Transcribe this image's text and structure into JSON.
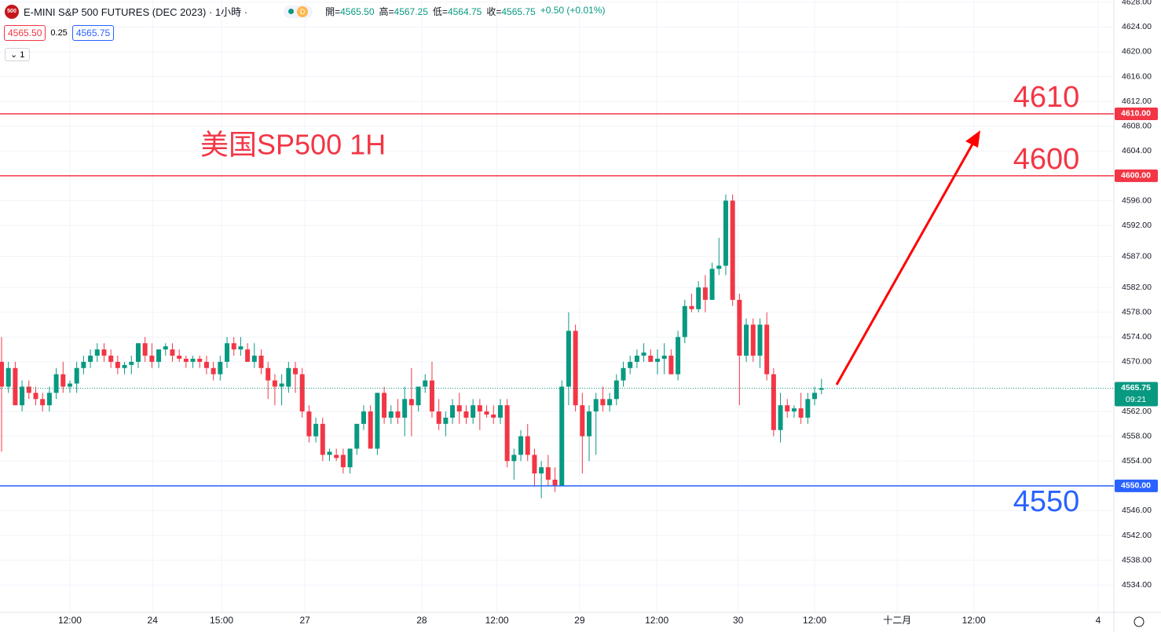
{
  "header": {
    "icon": "500",
    "symbol": "E-MINI S&P 500 FUTURES (DEC 2023) · 1小時 ·",
    "mode": "D",
    "ohlc": [
      {
        "label": "開=",
        "value": "4565.50"
      },
      {
        "label": "高=",
        "value": "4567.25"
      },
      {
        "label": "低=",
        "value": "4564.75"
      },
      {
        "label": "收=",
        "value": "4565.75"
      }
    ],
    "change": "+0.50 (+0.01%)",
    "bid": "4565.50",
    "spread": "0.25",
    "ask": "4565.75",
    "quantity": "1"
  },
  "chart_data": {
    "type": "candlestick",
    "annotation": "美国SP500 1H",
    "up_color": "#089981",
    "down_color": "#f23645",
    "grid": true,
    "ohlc": [
      [
        4570,
        4574,
        4555.5,
        4566
      ],
      [
        4566,
        4570,
        4565,
        4569
      ],
      [
        4569,
        4570,
        4563,
        4563
      ],
      [
        4563,
        4567,
        4562,
        4566
      ],
      [
        4566,
        4567,
        4564,
        4565
      ],
      [
        4565,
        4566,
        4563,
        4564
      ],
      [
        4564,
        4565,
        4562,
        4563
      ],
      [
        4563,
        4566,
        4562,
        4565
      ],
      [
        4565,
        4569,
        4564,
        4568
      ],
      [
        4568,
        4570,
        4565,
        4566
      ],
      [
        4566,
        4567,
        4565,
        4566.5
      ],
      [
        4566.5,
        4570,
        4565,
        4569
      ],
      [
        4569,
        4571,
        4568,
        4570
      ],
      [
        4570,
        4572,
        4569,
        4571
      ],
      [
        4571,
        4573,
        4570,
        4572
      ],
      [
        4572,
        4573,
        4570,
        4571
      ],
      [
        4571,
        4572,
        4569,
        4570
      ],
      [
        4570,
        4571,
        4568,
        4569
      ],
      [
        4569,
        4570,
        4568,
        4569.5
      ],
      [
        4569.5,
        4571,
        4568,
        4570
      ],
      [
        4570,
        4573,
        4569,
        4573
      ],
      [
        4573,
        4574,
        4570,
        4571
      ],
      [
        4571,
        4573,
        4569,
        4570
      ],
      [
        4570,
        4572,
        4569,
        4572
      ],
      [
        4572,
        4573,
        4571,
        4572.5
      ],
      [
        4572,
        4573,
        4570,
        4571
      ],
      [
        4571,
        4572,
        4570,
        4570.5
      ],
      [
        4570.5,
        4571,
        4569,
        4570
      ],
      [
        4570,
        4571,
        4569,
        4570.5
      ],
      [
        4570.5,
        4571,
        4569,
        4570
      ],
      [
        4570,
        4571,
        4568,
        4569
      ],
      [
        4569,
        4570,
        4567,
        4568
      ],
      [
        4568,
        4571,
        4567,
        4570
      ],
      [
        4570,
        4574,
        4569,
        4573
      ],
      [
        4573,
        4574,
        4571,
        4572
      ],
      [
        4572,
        4574,
        4571,
        4572.5
      ],
      [
        4572,
        4573,
        4570,
        4570
      ],
      [
        4570,
        4573,
        4569,
        4571
      ],
      [
        4571,
        4572,
        4568,
        4569
      ],
      [
        4569,
        4570,
        4564,
        4567
      ],
      [
        4567,
        4568,
        4563,
        4566
      ],
      [
        4566,
        4568,
        4563,
        4566.5
      ],
      [
        4566,
        4570,
        4565,
        4569
      ],
      [
        4569,
        4570,
        4565,
        4568
      ],
      [
        4568,
        4569,
        4561,
        4562
      ],
      [
        4562,
        4563,
        4557,
        4558
      ],
      [
        4558,
        4561,
        4557,
        4560
      ],
      [
        4560,
        4561,
        4554,
        4555
      ],
      [
        4555,
        4556,
        4554,
        4555.5
      ],
      [
        4555,
        4556,
        4554,
        4554.5
      ],
      [
        4555,
        4556,
        4552,
        4553
      ],
      [
        4553,
        4556,
        4552,
        4556
      ],
      [
        4556,
        4560,
        4555,
        4560
      ],
      [
        4560,
        4563,
        4559,
        4562
      ],
      [
        4562,
        4563,
        4556,
        4556
      ],
      [
        4556,
        4565,
        4555,
        4565
      ],
      [
        4565,
        4566,
        4560,
        4561
      ],
      [
        4561,
        4563,
        4560,
        4562
      ],
      [
        4562,
        4564,
        4560,
        4561
      ],
      [
        4561,
        4566,
        4558,
        4564
      ],
      [
        4564,
        4569,
        4558,
        4563
      ],
      [
        4563,
        4566,
        4562,
        4566
      ],
      [
        4566,
        4568,
        4565,
        4567
      ],
      [
        4567,
        4570,
        4561,
        4562
      ],
      [
        4562,
        4564,
        4559,
        4560
      ],
      [
        4560,
        4562,
        4558,
        4561
      ],
      [
        4561,
        4564,
        4560,
        4563
      ],
      [
        4563,
        4565,
        4560,
        4562
      ],
      [
        4562,
        4563,
        4560,
        4561
      ],
      [
        4561,
        4564,
        4560,
        4563
      ],
      [
        4563,
        4564,
        4559,
        4562
      ],
      [
        4562,
        4563,
        4561,
        4561.5
      ],
      [
        4561.5,
        4563,
        4560,
        4561
      ],
      [
        4561,
        4564,
        4560,
        4563
      ],
      [
        4563,
        4564,
        4553,
        4554
      ],
      [
        4554,
        4556,
        4551,
        4555
      ],
      [
        4555,
        4559,
        4554,
        4558
      ],
      [
        4558,
        4560,
        4554,
        4555
      ],
      [
        4555,
        4556,
        4550,
        4552
      ],
      [
        4552,
        4554,
        4548,
        4553
      ],
      [
        4553,
        4555,
        4550,
        4551
      ],
      [
        4551,
        4553,
        4549,
        4550
      ],
      [
        4550,
        4567,
        4550,
        4566
      ],
      [
        4566,
        4578,
        4563,
        4575
      ],
      [
        4575,
        4576,
        4562,
        4563
      ],
      [
        4563,
        4565,
        4552,
        4558
      ],
      [
        4558,
        4563,
        4554,
        4562
      ],
      [
        4562,
        4565,
        4555,
        4564
      ],
      [
        4564,
        4566,
        4562,
        4563
      ],
      [
        4563,
        4565,
        4562,
        4564
      ],
      [
        4564,
        4568,
        4563,
        4567
      ],
      [
        4567,
        4570,
        4566,
        4569
      ],
      [
        4569,
        4571,
        4568,
        4570
      ],
      [
        4570,
        4572,
        4569,
        4571
      ],
      [
        4571,
        4573,
        4570,
        4571.5
      ],
      [
        4571,
        4572,
        4570,
        4570
      ],
      [
        4570,
        4572,
        4568,
        4570.5
      ],
      [
        4570.5,
        4573,
        4568,
        4571
      ],
      [
        4571,
        4572,
        4568,
        4568
      ],
      [
        4568,
        4575,
        4567,
        4574
      ],
      [
        4574,
        4580,
        4573,
        4579
      ],
      [
        4579,
        4581,
        4578,
        4578.5
      ],
      [
        4578.5,
        4583,
        4578,
        4582
      ],
      [
        4582,
        4584,
        4578,
        4580
      ],
      [
        4580,
        4586,
        4580,
        4585
      ],
      [
        4585,
        4590,
        4584,
        4585.5
      ],
      [
        4585.5,
        4597,
        4584,
        4596
      ],
      [
        4596,
        4597,
        4579,
        4580
      ],
      [
        4580,
        4581,
        4563,
        4571
      ],
      [
        4571,
        4577,
        4570,
        4576
      ],
      [
        4576,
        4577,
        4570,
        4571
      ],
      [
        4571,
        4577,
        4569,
        4576
      ],
      [
        4576,
        4578,
        4567,
        4568
      ],
      [
        4568,
        4569,
        4558,
        4559
      ],
      [
        4559,
        4565,
        4557,
        4563
      ],
      [
        4563,
        4564,
        4561,
        4562
      ],
      [
        4562,
        4563,
        4561,
        4562.5
      ],
      [
        4562.5,
        4565,
        4560,
        4561
      ],
      [
        4561,
        4565,
        4560,
        4564
      ],
      [
        4564,
        4566,
        4563,
        4565
      ],
      [
        4565.5,
        4567.25,
        4564.75,
        4565.75
      ]
    ],
    "xlim": [
      -0.23,
      162.8
    ],
    "xticks": [
      {
        "value": 10,
        "label": "12:00"
      },
      {
        "value": 22.1,
        "label": "24"
      },
      {
        "value": 32.2,
        "label": "15:00"
      },
      {
        "value": 44.4,
        "label": "27"
      },
      {
        "value": 61.5,
        "label": "28"
      },
      {
        "value": 72.5,
        "label": "12:00"
      },
      {
        "value": 84.6,
        "label": "29"
      },
      {
        "value": 95.9,
        "label": "12:00"
      },
      {
        "value": 107.8,
        "label": "30"
      },
      {
        "value": 119,
        "label": "12:00"
      },
      {
        "value": 131.1,
        "label": "十二月"
      },
      {
        "value": 142.3,
        "label": "12:00"
      },
      {
        "value": 160.5,
        "label": "4"
      }
    ],
    "ylim": [
      4529.6,
      4628.35
    ],
    "yticks": [
      {
        "value": 4628,
        "label": "4628.00"
      },
      {
        "value": 4624,
        "label": "4624.00"
      },
      {
        "value": 4620,
        "label": "4620.00"
      },
      {
        "value": 4616,
        "label": "4616.00"
      },
      {
        "value": 4612,
        "label": "4612.00"
      },
      {
        "value": 4608,
        "label": "4608.00"
      },
      {
        "value": 4604,
        "label": "4604.00"
      },
      {
        "value": 4596,
        "label": "4596.00"
      },
      {
        "value": 4592,
        "label": "4592.00"
      },
      {
        "value": 4587,
        "label": "4587.00"
      },
      {
        "value": 4582,
        "label": "4582.00"
      },
      {
        "value": 4578,
        "label": "4578.00"
      },
      {
        "value": 4574,
        "label": "4574.00"
      },
      {
        "value": 4570,
        "label": "4570.00"
      },
      {
        "value": 4562,
        "label": "4562.00"
      },
      {
        "value": 4558,
        "label": "4558.00"
      },
      {
        "value": 4554,
        "label": "4554.00"
      },
      {
        "value": 4546,
        "label": "4546.00"
      },
      {
        "value": 4542,
        "label": "4542.00"
      },
      {
        "value": 4538,
        "label": "4538.00"
      },
      {
        "value": 4534,
        "label": "4534.00"
      }
    ],
    "levels": [
      {
        "value": 4610,
        "label": "4610",
        "axis_label": "4610.00",
        "color": "#f23645"
      },
      {
        "value": 4600,
        "label": "4600",
        "axis_label": "4600.00",
        "color": "#f23645"
      },
      {
        "value": 4550,
        "label": "4550",
        "axis_label": "4550.00",
        "color": "#2962ff"
      }
    ],
    "last_price": {
      "value": 4565.75,
      "label": "4565.75",
      "countdown": "09:21",
      "color": "#089981"
    }
  }
}
